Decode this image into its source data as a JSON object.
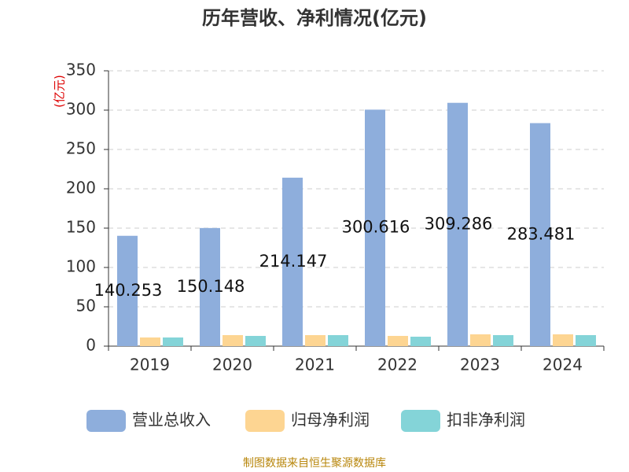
{
  "chart_data": {
    "type": "bar",
    "title": "历年营收、净利情况(亿元)",
    "y_label": "(亿元)",
    "categories": [
      "2019",
      "2020",
      "2021",
      "2022",
      "2023",
      "2024"
    ],
    "series": [
      {
        "name": "营业总收入",
        "color": "#8eaedc",
        "values": [
          140.253,
          150.148,
          214.147,
          300.616,
          309.286,
          283.481
        ],
        "show_labels": true
      },
      {
        "name": "归母净利润",
        "color": "#fdd592",
        "values": [
          11,
          14,
          14,
          13,
          15,
          15
        ]
      },
      {
        "name": "扣非净利润",
        "color": "#84d4d8",
        "values": [
          11,
          13,
          14,
          12,
          14,
          14
        ]
      }
    ],
    "ylim": [
      0,
      350
    ],
    "yticks": [
      0,
      50,
      100,
      150,
      200,
      250,
      300,
      350
    ],
    "grid": true,
    "legend": "bottom",
    "source": "制图数据来自恒生聚源数据库"
  }
}
